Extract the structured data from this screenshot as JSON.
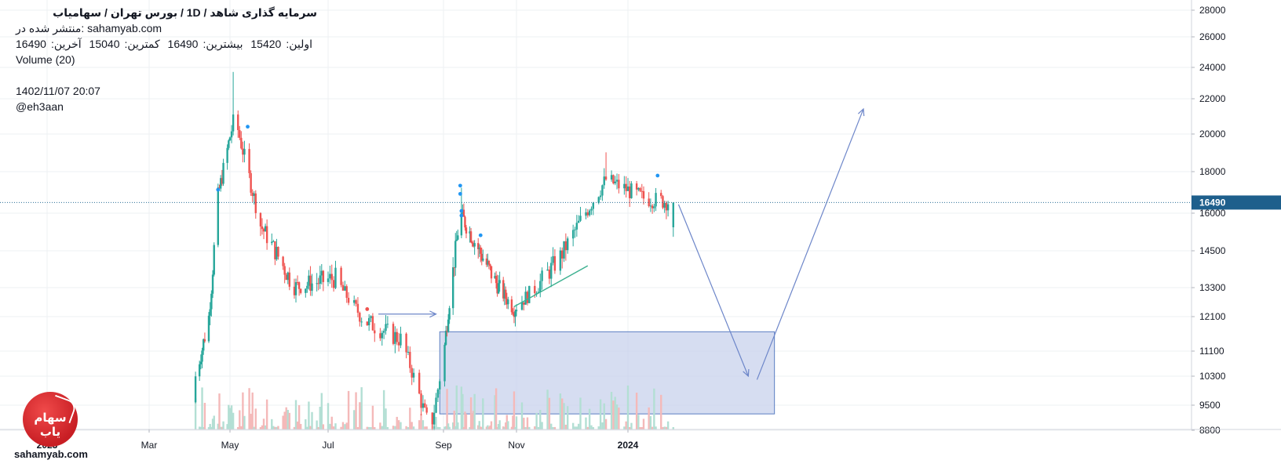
{
  "header": {
    "title": "سرمایه گذاری شاهد / 1D / بورس تهران / سهامیاب",
    "published": "منتشر شده در: sahamyab.com",
    "ohlc": {
      "open_label": "اولین:",
      "open": "15420",
      "high_label": "بیشترین:",
      "high": "16490",
      "low_label": "کمترین:",
      "low": "15040",
      "close_label": "آخرین:",
      "close": "16490"
    },
    "volume_label": "Volume (20)",
    "datetime": "1402/11/07 20:07",
    "author": "@eh3aan"
  },
  "watermark": {
    "site": "sahamyab.com",
    "logo_word": "سهام یاب",
    "logo_color": "#d32027"
  },
  "colors": {
    "up": "#26a69a",
    "down": "#ef5350",
    "up_volume": "#b3dfd4",
    "down_volume": "#f4b9b9",
    "price_line": "#2a6f97",
    "price_badge": "#1e5f8c",
    "zone_fill": "#c5cfeb",
    "zone_stroke": "#5b7ec2",
    "arrow": "#6d86c9",
    "trend_line": "#3bb08f",
    "marker": "#2196f3",
    "grid": "#eef0f3"
  },
  "chart_data": {
    "type": "candlestick",
    "title": "سرمایه گذاری شاهد / 1D / بورس تهران / سهامیاب",
    "y_scale": "log",
    "ylim": [
      8800,
      28500
    ],
    "y_ticks": [
      28000,
      26000,
      24000,
      22000,
      20000,
      18000,
      16000,
      14500,
      13300,
      12100,
      11100,
      10300,
      9500,
      8800
    ],
    "x_tick_labels": [
      "2023",
      "Mar",
      "May",
      "Jul",
      "Sep",
      "Nov",
      "2024"
    ],
    "last_price": 16490,
    "grid": true,
    "series": [
      {
        "name": "price",
        "ohlc_key_points": [
          {
            "date": "2023-04-05",
            "close": 10300
          },
          {
            "date": "2023-04-15",
            "close": 12100
          },
          {
            "date": "2023-04-22",
            "close": 16800
          },
          {
            "date": "2023-05-04",
            "high": 23700,
            "close": 21000
          },
          {
            "date": "2023-05-20",
            "close": 15500
          },
          {
            "date": "2023-06-10",
            "close": 13300
          },
          {
            "date": "2023-07-05",
            "close": 13600
          },
          {
            "date": "2023-07-20",
            "close": 12000
          },
          {
            "date": "2023-08-10",
            "close": 11400
          },
          {
            "date": "2023-08-25",
            "low": 8800
          },
          {
            "date": "2023-09-08",
            "close": 13500
          },
          {
            "date": "2023-09-15",
            "high": 17200,
            "close": 16000
          },
          {
            "date": "2023-10-01",
            "close": 14500
          },
          {
            "date": "2023-10-30",
            "low": 12400
          },
          {
            "date": "2023-11-25",
            "close": 14300
          },
          {
            "date": "2023-12-20",
            "high": 19000,
            "close": 17600
          },
          {
            "date": "2024-01-10",
            "close": 16700
          },
          {
            "date": "2024-01-27",
            "open": 15420,
            "high": 16490,
            "low": 15040,
            "close": 16490
          }
        ]
      }
    ],
    "annotations": {
      "demand_zone": {
        "date_from": "2023-08-30",
        "date_to": "2024-03-25",
        "price_from": 9250,
        "price_to": 11650
      },
      "trend_line": {
        "from": {
          "date": "2023-10-30",
          "price": 12500
        },
        "to": {
          "date": "2023-12-10",
          "price": 14000
        }
      },
      "arrow_small": {
        "from": {
          "date": "2023-07-28",
          "price": 12200
        },
        "to": {
          "date": "2023-08-28",
          "price": 12200
        }
      },
      "arrow_down": {
        "from": {
          "date": "2024-01-30",
          "price": 16400
        },
        "to": {
          "date": "2024-03-10",
          "price": 10300
        }
      },
      "arrow_up": {
        "from": {
          "date": "2024-03-15",
          "price": 10200
        },
        "to": {
          "date": "2024-05-15",
          "price": 21400
        }
      }
    }
  }
}
